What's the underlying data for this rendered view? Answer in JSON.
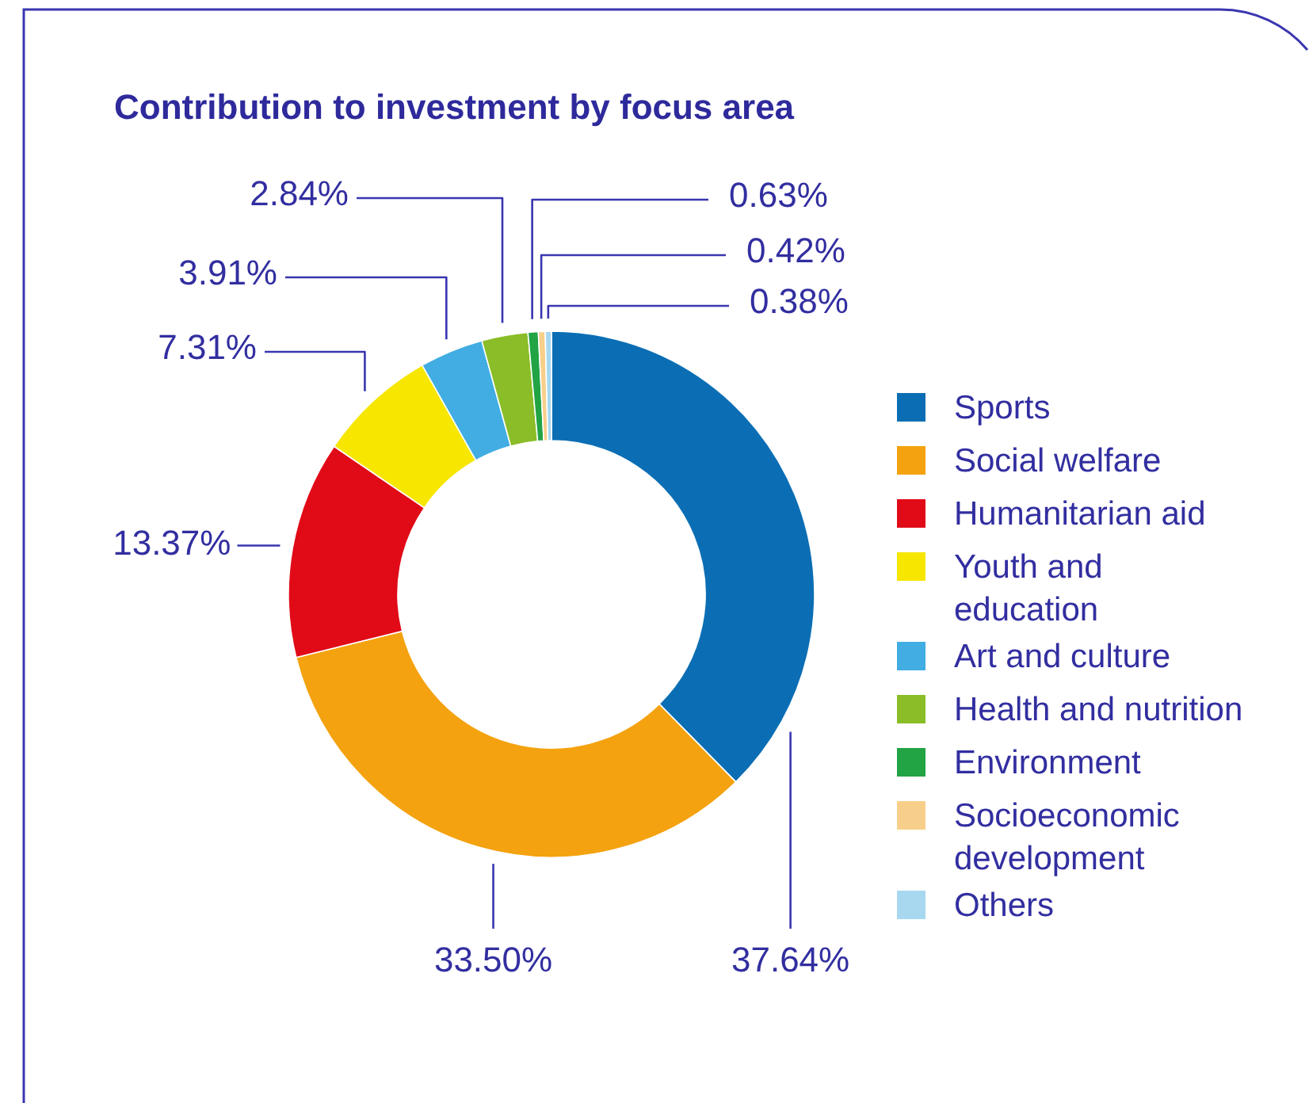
{
  "chart_data": {
    "type": "donut",
    "title": "Contribution to investment by focus area",
    "categories": [
      "Sports",
      "Social welfare",
      "Humanitarian aid",
      "Youth and education",
      "Art and culture",
      "Health and nutrition",
      "Environment",
      "Socioeconomic development",
      "Others"
    ],
    "values": [
      37.64,
      33.5,
      13.37,
      7.31,
      3.91,
      2.84,
      0.63,
      0.42,
      0.38
    ],
    "colors": [
      "#0b6eb4",
      "#f4a20f",
      "#e00b17",
      "#f6e600",
      "#41ade2",
      "#8abd27",
      "#22a344",
      "#f8cf8a",
      "#a7d8f0"
    ],
    "value_labels": [
      "37.64%",
      "33.50%",
      "13.37%",
      "7.31%",
      "3.91%",
      "2.84%",
      "0.63%",
      "0.42%",
      "0.38%"
    ],
    "legend": "right"
  }
}
